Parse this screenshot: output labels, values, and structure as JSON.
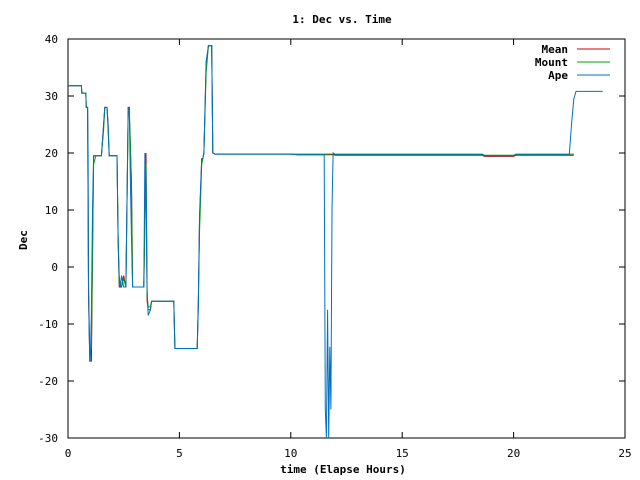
{
  "chart_data": {
    "type": "line",
    "title": "1: Dec vs. Time",
    "xlabel": "time (Elapse Hours)",
    "ylabel": "Dec",
    "xlim": [
      0,
      25
    ],
    "ylim": [
      -30,
      40
    ],
    "xticks": [
      0,
      5,
      10,
      15,
      20,
      25
    ],
    "yticks": [
      -30,
      -20,
      -10,
      0,
      10,
      20,
      30,
      40
    ],
    "grid": false,
    "legend_position": "top-right",
    "series": [
      {
        "name": "Mean",
        "color": "#cc0000",
        "x": [
          0,
          0.6,
          0.62,
          0.8,
          0.82,
          0.88,
          0.92,
          0.98,
          1.05,
          1.15,
          1.25,
          1.5,
          1.6,
          1.65,
          1.75,
          1.8,
          1.85,
          1.95,
          2.0,
          2.2,
          2.25,
          2.3,
          2.4,
          2.5,
          2.6,
          2.7,
          2.75,
          2.8,
          2.85,
          2.9,
          3.0,
          3.05,
          3.1,
          3.4,
          3.5,
          3.55,
          3.6,
          3.7,
          3.75,
          3.8,
          3.9,
          4.6,
          4.75,
          4.8,
          5.0,
          5.8,
          5.85,
          5.9,
          6.0,
          6.05,
          6.1,
          6.2,
          6.3,
          6.35,
          6.45,
          6.5,
          6.6,
          7.0,
          10.0,
          10.3,
          11.5,
          11.6,
          11.7,
          11.8,
          11.9,
          12.0,
          18.6,
          18.7,
          20.0,
          20.1,
          22.5,
          22.6,
          22.7
        ],
        "y": [
          31.8,
          31.8,
          30.5,
          30.5,
          28,
          28,
          -5,
          -16.5,
          -16.5,
          19.5,
          19.5,
          19.5,
          25,
          28,
          28,
          25,
          19.5,
          19.5,
          19.5,
          19.5,
          5,
          -3.5,
          -3.5,
          -1.5,
          -3.5,
          28,
          28,
          20,
          15,
          -3.5,
          -3.5,
          -3.5,
          -3.5,
          -3.5,
          20,
          -6,
          -7.5,
          -7.5,
          -6,
          -6,
          -6,
          -6,
          -6,
          -14.3,
          -14.3,
          -14.3,
          -7,
          8,
          19,
          19,
          20,
          35,
          38.8,
          38.8,
          38.8,
          20,
          19.8,
          19.8,
          19.8,
          19.7,
          19.7,
          19.7,
          19.7,
          19.7,
          19.7,
          19.6,
          19.6,
          19.4,
          19.4,
          19.6,
          19.6,
          19.6,
          19.6
        ]
      },
      {
        "name": "Mount",
        "color": "#00a000",
        "x": [
          0,
          0.6,
          0.62,
          0.8,
          0.82,
          0.88,
          0.92,
          0.98,
          1.05,
          1.15,
          1.25,
          1.5,
          1.6,
          1.65,
          1.75,
          1.8,
          1.85,
          1.95,
          2.0,
          2.2,
          2.25,
          2.3,
          2.4,
          2.5,
          2.6,
          2.7,
          2.75,
          2.8,
          2.85,
          2.9,
          3.0,
          3.05,
          3.1,
          3.4,
          3.5,
          3.55,
          3.6,
          3.7,
          3.75,
          3.8,
          3.9,
          4.6,
          4.75,
          4.8,
          5.0,
          5.8,
          5.85,
          5.9,
          6.0,
          6.05,
          6.1,
          6.2,
          6.3,
          6.35,
          6.45,
          6.5,
          6.6,
          7.0,
          10.0,
          10.3,
          11.5,
          11.6,
          11.7,
          11.8,
          11.9,
          12.0,
          18.6,
          18.7,
          20.0,
          20.1,
          22.5,
          22.6,
          22.7
        ],
        "y": [
          31.8,
          31.8,
          30.5,
          30.5,
          28,
          28,
          -3,
          -15.5,
          -14,
          18,
          19.5,
          19.5,
          24,
          28,
          28,
          24,
          19.5,
          19.5,
          19.5,
          19.5,
          6,
          -3,
          -3.5,
          -2,
          -3.5,
          27,
          27,
          22,
          14,
          -3.5,
          -3.5,
          -3.5,
          -3.5,
          -3.5,
          18,
          -5,
          -7,
          -7,
          -6,
          -6,
          -6,
          -6,
          -6,
          -14.3,
          -14.3,
          -14.3,
          -6,
          6,
          18,
          19,
          20,
          34,
          38.8,
          38.8,
          38.8,
          20,
          19.8,
          19.8,
          19.8,
          19.8,
          19.8,
          19.8,
          19.8,
          19.8,
          19.8,
          19.8,
          19.8,
          19.6,
          19.6,
          19.8,
          19.8,
          19.8,
          19.8
        ]
      },
      {
        "name": "Ape",
        "color": "#0070c0",
        "x": [
          0,
          0.55,
          0.6,
          0.62,
          0.8,
          0.82,
          0.88,
          0.9,
          0.92,
          0.95,
          0.98,
          1.0,
          1.05,
          1.1,
          1.15,
          1.25,
          1.5,
          1.6,
          1.65,
          1.75,
          1.8,
          1.85,
          1.95,
          2.0,
          2.2,
          2.25,
          2.3,
          2.35,
          2.4,
          2.5,
          2.6,
          2.7,
          2.75,
          2.8,
          2.85,
          2.9,
          3.0,
          3.05,
          3.1,
          3.4,
          3.45,
          3.5,
          3.55,
          3.6,
          3.7,
          3.75,
          3.8,
          3.9,
          4.6,
          4.75,
          4.8,
          5.0,
          5.8,
          5.85,
          5.9,
          6.0,
          6.05,
          6.1,
          6.2,
          6.3,
          6.35,
          6.45,
          6.5,
          6.6,
          7.0,
          10.0,
          10.3,
          11.5,
          11.55,
          11.6,
          11.65,
          11.7,
          11.75,
          11.8,
          11.85,
          11.9,
          12.0,
          18.6,
          18.7,
          20.0,
          20.1,
          22.5,
          22.6,
          22.7,
          22.8,
          23.2,
          24.0
        ],
        "y": [
          31.8,
          31.8,
          31.8,
          30.5,
          30.5,
          28,
          28,
          20,
          -2,
          -12,
          -16.5,
          -16.5,
          -8,
          10,
          19.5,
          19.5,
          19.5,
          25,
          28,
          28,
          25,
          19.5,
          19.5,
          19.5,
          19.5,
          5,
          -1.5,
          -3.5,
          -1.5,
          -3.5,
          -3.5,
          28,
          28,
          15,
          5,
          -3.5,
          -3.5,
          -3.5,
          -3.5,
          -3.5,
          20,
          16,
          -4,
          -8.5,
          -7.5,
          -6,
          -6,
          -6,
          -6,
          -6,
          -14.3,
          -14.3,
          -14.3,
          -7,
          9,
          19,
          19,
          20,
          36,
          38.8,
          38.8,
          38.8,
          20,
          19.8,
          19.8,
          19.8,
          19.7,
          19.7,
          -25,
          -30,
          -7.5,
          -30,
          -14,
          -25,
          10,
          20,
          19.7,
          19.7,
          19.5,
          19.5,
          19.7,
          19.7,
          25,
          29.5,
          30.8,
          30.8,
          30.8
        ]
      }
    ]
  }
}
